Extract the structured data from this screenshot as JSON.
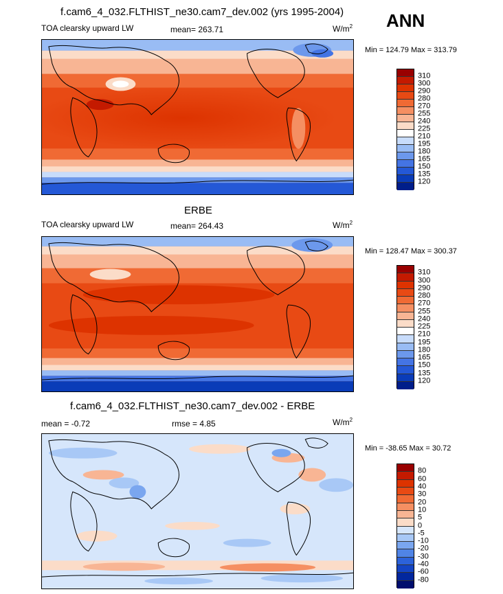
{
  "season": "ANN",
  "panels": [
    {
      "title": "f.cam6_4_032.FLTHIST_ne30.cam7_dev.002 (yrs 1995-2004)",
      "variable": "TOA clearsky upward LW",
      "stat_text": "mean= 263.71",
      "units_base": "W/m",
      "units_exp": "2",
      "minmax": "Min = 124.79 Max = 313.79",
      "levels": [
        "310",
        "300",
        "290",
        "280",
        "270",
        "255",
        "240",
        "225",
        "210",
        "195",
        "180",
        "165",
        "150",
        "135",
        "120"
      ],
      "colors": [
        "#990000",
        "#c41a00",
        "#dd3300",
        "#e84a14",
        "#f06a34",
        "#f58f62",
        "#f8b594",
        "#fbdcc8",
        "#ffffff",
        "#c8dcfb",
        "#99bcf4",
        "#6c98ec",
        "#4474e4",
        "#2458d6",
        "#0a3cb8",
        "#001e8a"
      ]
    },
    {
      "title": "ERBE",
      "variable": "TOA clearsky upward LW",
      "stat_text": "mean= 264.43",
      "units_base": "W/m",
      "units_exp": "2",
      "minmax": "Min = 128.47 Max = 300.37",
      "levels": [
        "310",
        "300",
        "290",
        "280",
        "270",
        "255",
        "240",
        "225",
        "210",
        "195",
        "180",
        "165",
        "150",
        "135",
        "120"
      ],
      "colors": [
        "#990000",
        "#c41a00",
        "#dd3300",
        "#e84a14",
        "#f06a34",
        "#f58f62",
        "#f8b594",
        "#fbdcc8",
        "#ffffff",
        "#c8dcfb",
        "#99bcf4",
        "#6c98ec",
        "#4474e4",
        "#2458d6",
        "#0a3cb8",
        "#001e8a"
      ]
    },
    {
      "title": "f.cam6_4_032.FLTHIST_ne30.cam7_dev.002 - ERBE",
      "variable": "mean =  -0.72",
      "stat_text": "rmse =   4.85",
      "units_base": "W/m",
      "units_exp": "2",
      "minmax": "Min = -38.65 Max =  30.72",
      "levels": [
        "80",
        "60",
        "40",
        "30",
        "20",
        "10",
        "5",
        "0",
        "-5",
        "-10",
        "-20",
        "-30",
        "-40",
        "-60",
        "-80"
      ],
      "colors": [
        "#990000",
        "#c41a00",
        "#dd3300",
        "#e84a14",
        "#f06a34",
        "#f58f62",
        "#f8b594",
        "#fbdcc8",
        "#d6e6fb",
        "#a8c8f6",
        "#7aa6ef",
        "#5084e6",
        "#2c62da",
        "#1444c4",
        "#02279e",
        "#000e6e"
      ]
    }
  ]
}
